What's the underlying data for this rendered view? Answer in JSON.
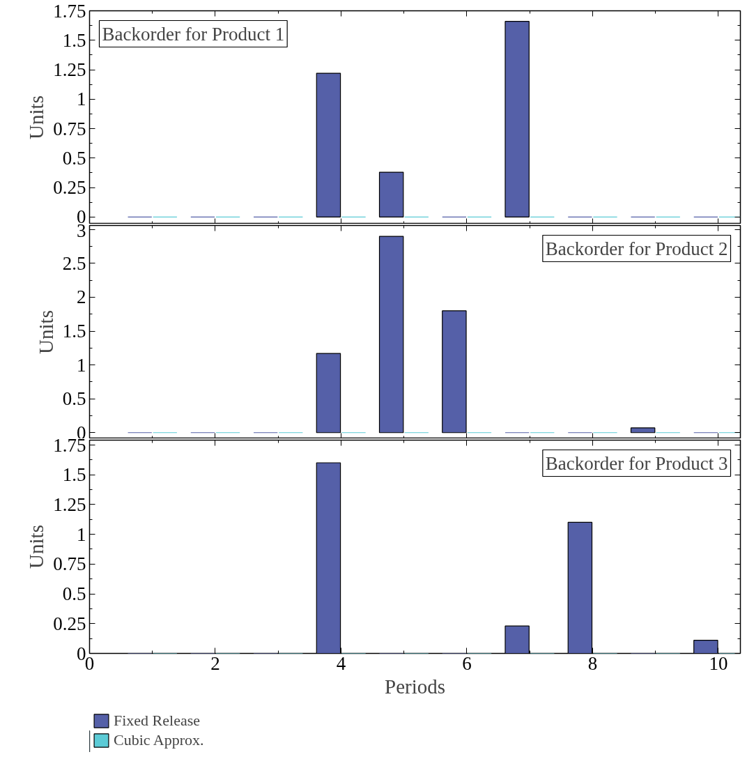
{
  "chart_data": [
    {
      "type": "bar",
      "x": [
        1,
        2,
        3,
        4,
        5,
        6,
        7,
        8,
        9,
        10
      ],
      "ylabel": "Units",
      "annotations": [
        "Backorder for Product 1"
      ],
      "xlim": [
        0,
        10.35
      ],
      "xticks": [
        0,
        2,
        4,
        6,
        8,
        10
      ],
      "ylim": [
        -0.06,
        1.75
      ],
      "yticks": [
        0,
        0.25,
        0.5,
        0.75,
        1,
        1.25,
        1.5,
        1.75
      ],
      "tick_labels": "y",
      "series": [
        {
          "color": "#5560a8",
          "values": [
            0,
            0,
            0,
            1.22,
            0.38,
            0,
            1.66,
            0,
            0,
            0
          ]
        },
        {
          "color": "#5ccbd6",
          "values": [
            0,
            0,
            0,
            0,
            0,
            0,
            0,
            0,
            0,
            0
          ]
        }
      ]
    },
    {
      "type": "bar",
      "x": [
        1,
        2,
        3,
        4,
        5,
        6,
        7,
        8,
        9,
        10
      ],
      "ylabel": "Units",
      "annotations": [
        "Backorder for Product 2"
      ],
      "xlim": [
        0,
        10.35
      ],
      "xticks": [
        0,
        2,
        4,
        6,
        8,
        10
      ],
      "ylim": [
        -0.09,
        3.06
      ],
      "yticks": [
        0,
        0.5,
        1,
        1.5,
        2,
        2.5,
        3
      ],
      "tick_labels": "y",
      "series": [
        {
          "color": "#5560a8",
          "values": [
            0,
            0,
            0,
            1.17,
            2.9,
            1.8,
            0,
            0,
            0.07,
            0
          ]
        },
        {
          "color": "#5ccbd6",
          "values": [
            0,
            0,
            0,
            0,
            0,
            0,
            0,
            0,
            0,
            0
          ]
        }
      ]
    },
    {
      "type": "bar",
      "x": [
        1,
        2,
        3,
        4,
        5,
        6,
        7,
        8,
        9,
        10
      ],
      "xlabel": "Periods",
      "ylabel": "Units",
      "annotations": [
        "Backorder for Product 3"
      ],
      "xlim": [
        0,
        10.35
      ],
      "xticks": [
        0,
        2,
        4,
        6,
        8,
        10
      ],
      "ylim": [
        0,
        1.79
      ],
      "yticks": [
        0,
        0.25,
        0.5,
        0.75,
        1,
        1.25,
        1.5,
        1.75
      ],
      "legend": "bottom left",
      "series": [
        {
          "name": "Fixed Release",
          "color": "#5560a8",
          "values": [
            0,
            0,
            0,
            1.6,
            0,
            0,
            0.23,
            1.1,
            0,
            0.11
          ]
        },
        {
          "name": "Cubic Approx.",
          "color": "#5ccbd6",
          "values": [
            0,
            0,
            0,
            0,
            0,
            0,
            0,
            0,
            0,
            0
          ]
        }
      ]
    }
  ]
}
